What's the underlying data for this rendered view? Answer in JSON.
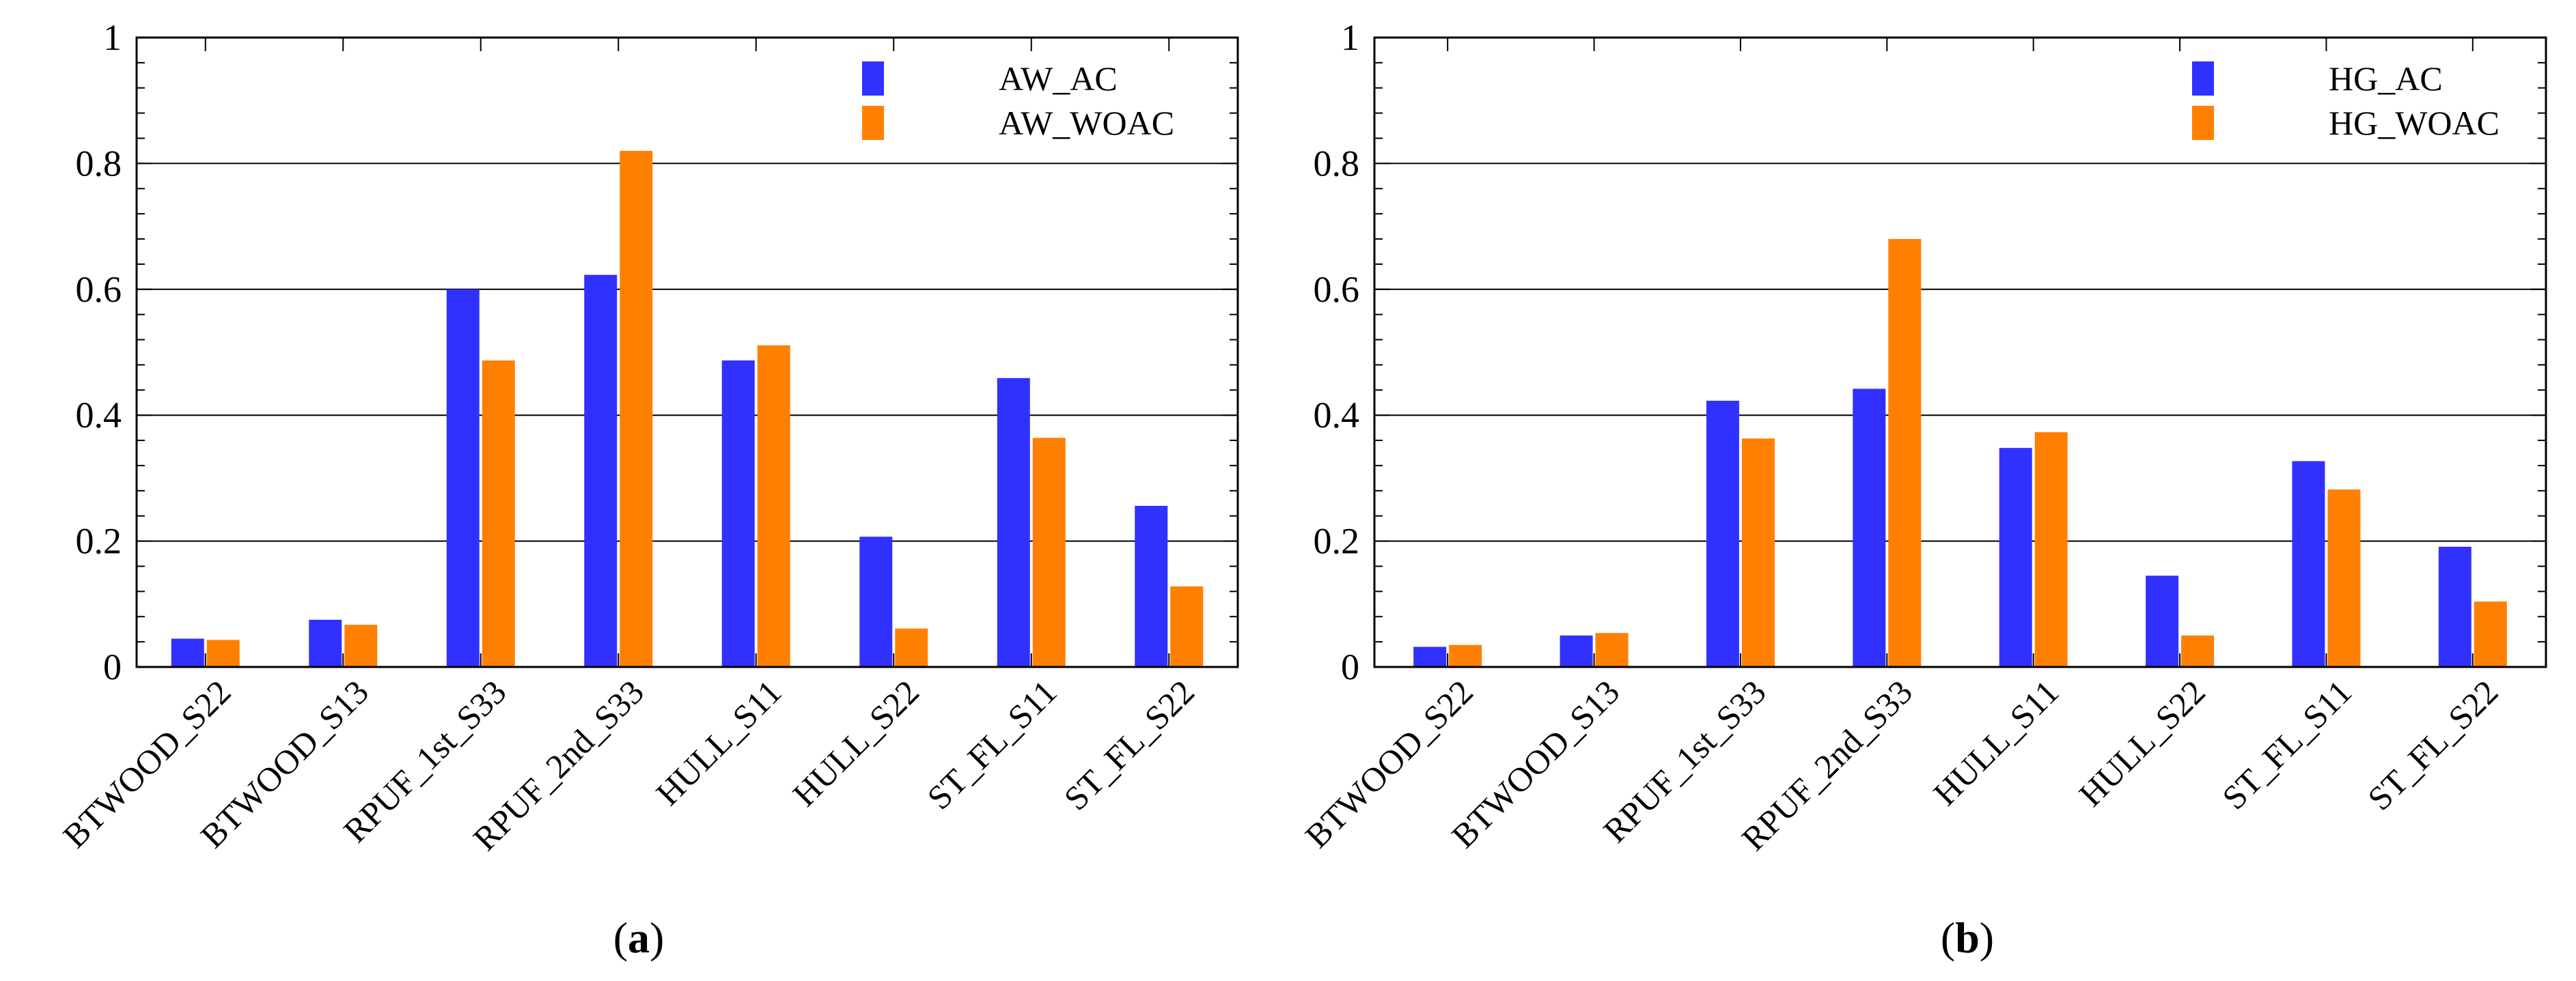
{
  "colors": {
    "series_a": "#3131ff",
    "series_b": "#ff8000",
    "axis": "#000000"
  },
  "chart_data": [
    {
      "type": "bar",
      "panel": {
        "open": "(",
        "letter": "a",
        "close": ")"
      },
      "categories": [
        "BTWOOD_S22",
        "BTWOOD_S13",
        "RPUF_1st_S33",
        "RPUF_2nd_S33",
        "HULL_S11",
        "HULL_S22",
        "ST_FL_S11",
        "ST_FL_S22"
      ],
      "series": [
        {
          "name": "AW_AC",
          "values": [
            0.045,
            0.075,
            0.6,
            0.623,
            0.487,
            0.207,
            0.459,
            0.256
          ]
        },
        {
          "name": "AW_WOAC",
          "values": [
            0.043,
            0.067,
            0.487,
            0.82,
            0.511,
            0.061,
            0.364,
            0.128
          ]
        }
      ],
      "ylim": [
        0,
        1
      ],
      "yticks": [
        0,
        0.2,
        0.4,
        0.6,
        0.8,
        1
      ],
      "ytick_labels": [
        "0",
        "0.2",
        "0.4",
        "0.6",
        "0.8",
        "1"
      ],
      "grid": true,
      "legend_position": "top-right"
    },
    {
      "type": "bar",
      "panel": {
        "open": "(",
        "letter": "b",
        "close": ")"
      },
      "categories": [
        "BTWOOD_S22",
        "BTWOOD_S13",
        "RPUF_1st_S33",
        "RPUF_2nd_S33",
        "HULL_S11",
        "HULL_S22",
        "ST_FL_S11",
        "ST_FL_S22"
      ],
      "series": [
        {
          "name": "HG_AC",
          "values": [
            0.032,
            0.05,
            0.423,
            0.442,
            0.348,
            0.145,
            0.327,
            0.191
          ]
        },
        {
          "name": "HG_WOAC",
          "values": [
            0.035,
            0.054,
            0.363,
            0.68,
            0.373,
            0.05,
            0.282,
            0.104
          ]
        }
      ],
      "ylim": [
        0,
        1
      ],
      "yticks": [
        0,
        0.2,
        0.4,
        0.6,
        0.8,
        1
      ],
      "ytick_labels": [
        "0",
        "0.2",
        "0.4",
        "0.6",
        "0.8",
        "1"
      ],
      "grid": true,
      "legend_position": "top-right"
    }
  ]
}
